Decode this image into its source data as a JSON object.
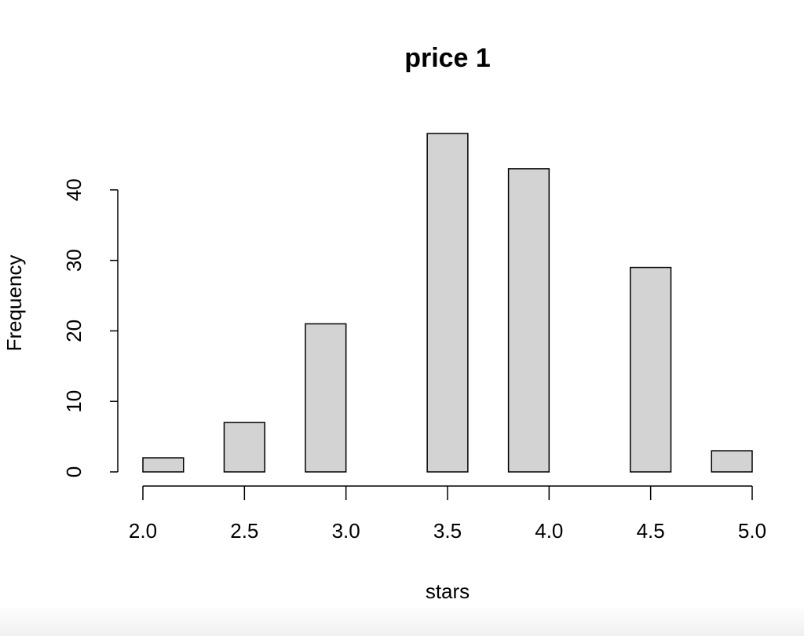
{
  "chart_data": {
    "type": "histogram",
    "title": "price 1",
    "x_label": "stars",
    "y_label": "Frequency",
    "bins": [
      2.0,
      2.2,
      2.4,
      2.6,
      2.8,
      3.0,
      3.2,
      3.4,
      3.6,
      3.8,
      4.0,
      4.2,
      4.4,
      4.6,
      4.8,
      5.0
    ],
    "values": [
      2,
      0,
      7,
      0,
      21,
      0,
      0,
      48,
      0,
      43,
      0,
      0,
      29,
      0,
      3
    ],
    "color": "#d3d3d3",
    "xlim": [
      2,
      5
    ],
    "xticks": [
      {
        "value": 2,
        "label": "2.0"
      },
      {
        "value": 2.5,
        "label": "2.5"
      },
      {
        "value": 3,
        "label": "3.0"
      },
      {
        "value": 3.5,
        "label": "3.5"
      },
      {
        "value": 4,
        "label": "4.0"
      },
      {
        "value": 4.5,
        "label": "4.5"
      },
      {
        "value": 5,
        "label": "5.0"
      }
    ],
    "ylim": [
      0,
      48
    ],
    "yticks": [
      0,
      10,
      20,
      30,
      40
    ]
  }
}
